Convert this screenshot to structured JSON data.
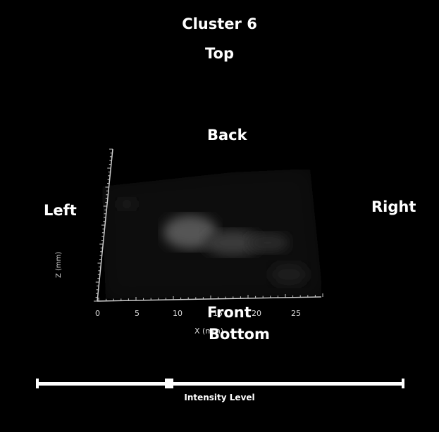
{
  "title": "Cluster 6",
  "orientation": {
    "top": "Top",
    "back": "Back",
    "left": "Left",
    "right": "Right",
    "front": "Front",
    "bottom": "Bottom"
  },
  "axes": {
    "x_label": "X (mm)",
    "x_ticks": [
      "0",
      "5",
      "10",
      "15",
      "20",
      "25"
    ],
    "z_label": "Z (mm)"
  },
  "slider": {
    "label": "Intensity Level",
    "value": 0.36
  }
}
